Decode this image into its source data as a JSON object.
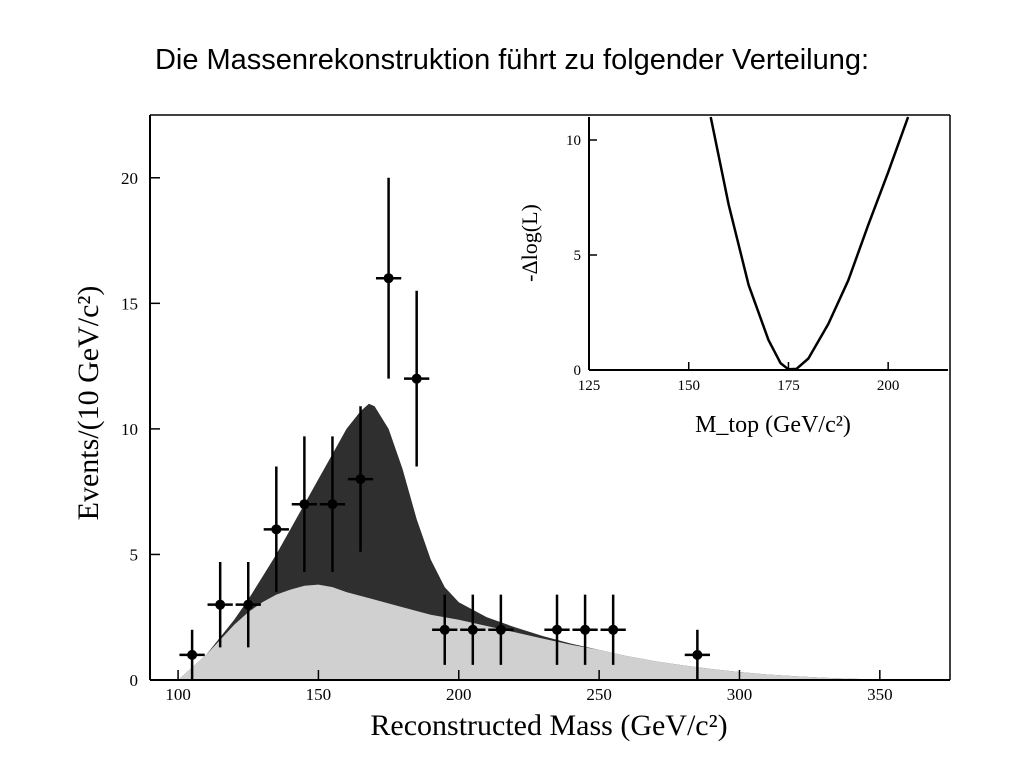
{
  "slide": {
    "title": "Die Massenrekonstruktion führt zu folgender Verteilung:"
  },
  "chart_data": [
    {
      "type": "scatter",
      "title": "",
      "xlabel": "Reconstructed Mass (GeV/c²)",
      "ylabel": "Events/(10 GeV/c²)",
      "xlim": [
        90,
        375
      ],
      "ylim": [
        0,
        22.5
      ],
      "xticks": [
        100,
        150,
        200,
        250,
        300,
        350
      ],
      "yticks": [
        0,
        5,
        10,
        15,
        20
      ],
      "grid": false,
      "series": [
        {
          "points": [
            {
              "x": 105,
              "y": 1,
              "err": 1
            },
            {
              "x": 115,
              "y": 3,
              "err": 1.7
            },
            {
              "x": 125,
              "y": 3,
              "err": 1.7
            },
            {
              "x": 135,
              "y": 6,
              "err": 2.5
            },
            {
              "x": 145,
              "y": 7,
              "err": 2.7
            },
            {
              "x": 155,
              "y": 7,
              "err": 2.7
            },
            {
              "x": 165,
              "y": 8,
              "err": 2.9
            },
            {
              "x": 175,
              "y": 16,
              "err": 4
            },
            {
              "x": 185,
              "y": 12,
              "err": 3.5
            },
            {
              "x": 195,
              "y": 2,
              "err": 1.4
            },
            {
              "x": 205,
              "y": 2,
              "err": 1.4
            },
            {
              "x": 215,
              "y": 2,
              "err": 1.4
            },
            {
              "x": 235,
              "y": 2,
              "err": 1.4
            },
            {
              "x": 245,
              "y": 2,
              "err": 1.4
            },
            {
              "x": 255,
              "y": 2,
              "err": 1.4
            },
            {
              "x": 285,
              "y": 1,
              "err": 1
            }
          ],
          "color": "#000000"
        },
        {
          "type": "area",
          "color": "#2f2f2f",
          "x": [
            100,
            105,
            110,
            115,
            120,
            125,
            130,
            135,
            140,
            145,
            150,
            155,
            160,
            165,
            168,
            170,
            175,
            180,
            185,
            190,
            195,
            200,
            210,
            220,
            230,
            240,
            250,
            260,
            270,
            280,
            290,
            300,
            310,
            320,
            330,
            340,
            350,
            360,
            370
          ],
          "y": [
            0,
            0.5,
            1.0,
            1.7,
            2.4,
            3.2,
            4.1,
            5.0,
            6.0,
            7.0,
            8.0,
            9.0,
            10.0,
            10.7,
            11.0,
            10.9,
            10.0,
            8.4,
            6.4,
            4.8,
            3.7,
            3.1,
            2.5,
            2.1,
            1.75,
            1.45,
            1.2,
            0.95,
            0.75,
            0.58,
            0.44,
            0.32,
            0.22,
            0.15,
            0.09,
            0.05,
            0.02,
            0.01,
            0
          ]
        },
        {
          "type": "area",
          "color": "#d0d0d0",
          "x": [
            100,
            105,
            110,
            115,
            120,
            125,
            130,
            135,
            140,
            145,
            150,
            155,
            160,
            170,
            180,
            190,
            200,
            210,
            220,
            230,
            240,
            250,
            260,
            270,
            280,
            290,
            300,
            310,
            320,
            330,
            340,
            350,
            360,
            370
          ],
          "y": [
            0,
            0.5,
            1.0,
            1.6,
            2.2,
            2.7,
            3.1,
            3.4,
            3.6,
            3.75,
            3.8,
            3.7,
            3.5,
            3.2,
            2.9,
            2.6,
            2.4,
            2.15,
            1.9,
            1.65,
            1.4,
            1.2,
            0.95,
            0.75,
            0.58,
            0.44,
            0.32,
            0.22,
            0.15,
            0.09,
            0.05,
            0.02,
            0.01,
            0
          ]
        }
      ]
    },
    {
      "type": "line",
      "title": "",
      "xlabel": "M_top (GeV/c²)",
      "ylabel": "-Δlog(L)",
      "xlim": [
        125,
        215
      ],
      "ylim": [
        0,
        11
      ],
      "xticks": [
        125,
        150,
        175,
        200
      ],
      "yticks": [
        0,
        5,
        10
      ],
      "grid": false,
      "series": [
        {
          "x": [
            155.5,
            160,
            165,
            170,
            173,
            175,
            177,
            180,
            185,
            190,
            195,
            200,
            205
          ],
          "y": [
            11,
            7.2,
            3.7,
            1.3,
            0.3,
            0.03,
            0.05,
            0.5,
            2.0,
            3.9,
            6.3,
            8.6,
            11
          ],
          "color": "#000000"
        }
      ]
    }
  ]
}
